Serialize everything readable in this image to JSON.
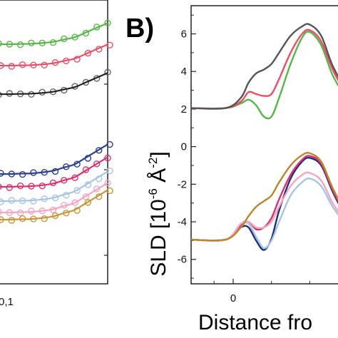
{
  "panel_label": "B)",
  "left_panel_tick_label": "0,1",
  "chart_data": [
    {
      "type": "scatter",
      "panel": "A",
      "note_visible": "partially cropped reflectivity panel; only one x tick label visible",
      "x_tick_labels": [
        "0,1"
      ],
      "series": [
        {
          "color": "#58b548",
          "x": [
            0,
            1,
            2,
            3,
            4,
            5,
            6,
            7,
            8,
            9,
            10
          ],
          "y": [
            0,
            0,
            0.1,
            0.2,
            0.5,
            1,
            2,
            3,
            5,
            7,
            9
          ]
        },
        {
          "color": "#e8506a",
          "x": [
            0,
            1,
            2,
            3,
            4,
            5,
            6,
            7,
            8,
            9,
            10
          ],
          "y": [
            0,
            0,
            0.1,
            0.2,
            0.5,
            1,
            2,
            3,
            5,
            7,
            9
          ]
        },
        {
          "color": "#666666",
          "x": [
            0,
            1,
            2,
            3,
            4,
            5,
            6,
            7,
            8,
            9,
            10
          ],
          "y": [
            0,
            0,
            0.1,
            0.2,
            0.5,
            1,
            2,
            3,
            5,
            7,
            9
          ]
        },
        {
          "color": "#2b3f8f",
          "x": [
            0,
            1,
            2,
            3,
            4,
            5,
            6,
            7,
            8,
            9,
            10
          ],
          "y": [
            0,
            0,
            0.1,
            0.2,
            0.5,
            1,
            2,
            3,
            5,
            7,
            9
          ]
        },
        {
          "color": "#d6336f",
          "x": [
            0,
            1,
            2,
            3,
            4,
            5,
            6,
            7,
            8,
            9,
            10
          ],
          "y": [
            0,
            0,
            0.1,
            0.2,
            0.5,
            1,
            2,
            3,
            5,
            7,
            9
          ]
        },
        {
          "color": "#a8c4e4",
          "x": [
            0,
            1,
            2,
            3,
            4,
            5,
            6,
            7,
            8,
            9,
            10
          ],
          "y": [
            0,
            0,
            0.1,
            0.2,
            0.5,
            1,
            2,
            3,
            5,
            7,
            9
          ]
        },
        {
          "color": "#f3a6c0",
          "x": [
            0,
            1,
            2,
            3,
            4,
            5,
            6,
            7,
            8,
            9,
            10
          ],
          "y": [
            0,
            0,
            0.1,
            0.2,
            0.5,
            1,
            2,
            3,
            5,
            7,
            9
          ]
        },
        {
          "color": "#c8963a",
          "x": [
            0,
            1,
            2,
            3,
            4,
            5,
            6,
            7,
            8,
            9,
            10
          ],
          "y": [
            0,
            0,
            0.1,
            0.2,
            0.5,
            1,
            2,
            3,
            5,
            7,
            9
          ]
        }
      ]
    },
    {
      "type": "line",
      "panel": "B",
      "ylabel_parts": [
        "SLD [10",
        "-6",
        " Å",
        "-2",
        "]"
      ],
      "xlabel": "Distance fro",
      "ylim": [
        -7.3,
        7.5
      ],
      "xlim": [
        -1.1,
        3.0
      ],
      "y_ticks": [
        6,
        4,
        2,
        0,
        -2,
        -4,
        -6
      ],
      "y_tick_labels": [
        "6",
        "4",
        "2",
        "0",
        "-2",
        "-4",
        "-6"
      ],
      "x_ticks": [
        0
      ],
      "x_tick_labels": [
        "0"
      ],
      "series": [
        {
          "color": "#58b548",
          "x": [
            -1.1,
            -0.2,
            0.2,
            0.4,
            0.6,
            0.8,
            1.0,
            1.2,
            1.5,
            1.8,
            2.0,
            2.3,
            2.6,
            3.0
          ],
          "y": [
            2.05,
            2.05,
            2.3,
            2.5,
            2.2,
            1.6,
            1.6,
            2.6,
            4.4,
            5.8,
            6.1,
            5.4,
            3.8,
            2.4
          ]
        },
        {
          "color": "#e8506a",
          "x": [
            -1.1,
            -0.2,
            0.2,
            0.4,
            0.6,
            0.8,
            1.0,
            1.2,
            1.5,
            1.8,
            2.0,
            2.3,
            2.6,
            3.0
          ],
          "y": [
            2.05,
            2.05,
            2.4,
            2.9,
            2.8,
            2.7,
            2.8,
            3.6,
            5.0,
            6.0,
            6.2,
            5.6,
            4.1,
            2.6
          ]
        },
        {
          "color": "#555555",
          "x": [
            -1.1,
            -0.2,
            0.2,
            0.4,
            0.6,
            0.8,
            1.0,
            1.2,
            1.5,
            1.8,
            2.0,
            2.3,
            2.6,
            3.0
          ],
          "y": [
            2.05,
            2.05,
            2.6,
            3.4,
            3.9,
            4.1,
            4.4,
            5.0,
            5.9,
            6.4,
            6.5,
            5.9,
            4.3,
            2.8
          ]
        },
        {
          "color": "#1f2f7a",
          "x": [
            -1.1,
            -0.2,
            0.2,
            0.4,
            0.6,
            0.8,
            1.0,
            1.2,
            1.5,
            1.8,
            2.0,
            2.3,
            2.6,
            3.0
          ],
          "y": [
            -4.95,
            -4.95,
            -4.3,
            -4.3,
            -5.0,
            -5.5,
            -4.9,
            -3.4,
            -1.7,
            -0.8,
            -0.6,
            -1.0,
            -2.4,
            -4.0
          ]
        },
        {
          "color": "#d6336f",
          "x": [
            -1.1,
            -0.2,
            0.2,
            0.4,
            0.6,
            0.8,
            1.0,
            1.2,
            1.5,
            1.8,
            2.0,
            2.3,
            2.6,
            3.0
          ],
          "y": [
            -4.95,
            -4.95,
            -4.2,
            -4.0,
            -4.4,
            -4.3,
            -3.8,
            -2.8,
            -1.5,
            -0.7,
            -0.5,
            -0.9,
            -2.3,
            -3.9
          ]
        },
        {
          "color": "#a8c4e4",
          "x": [
            -1.1,
            -0.2,
            0.2,
            0.4,
            0.6,
            0.8,
            1.0,
            1.2,
            1.5,
            1.8,
            2.0,
            2.3,
            2.6,
            3.0
          ],
          "y": [
            -4.95,
            -4.95,
            -4.1,
            -4.1,
            -4.8,
            -5.4,
            -5.0,
            -4.0,
            -2.6,
            -1.9,
            -1.7,
            -2.1,
            -3.2,
            -4.3
          ]
        },
        {
          "color": "#f3a6c0",
          "x": [
            -1.1,
            -0.2,
            0.2,
            0.4,
            0.6,
            0.8,
            1.0,
            1.2,
            1.5,
            1.8,
            2.0,
            2.3,
            2.6,
            3.0
          ],
          "y": [
            -4.95,
            -4.95,
            -4.1,
            -4.0,
            -4.3,
            -4.3,
            -4.0,
            -3.2,
            -2.1,
            -1.5,
            -1.4,
            -1.8,
            -3.0,
            -4.2
          ]
        },
        {
          "color": "#b8862e",
          "x": [
            -1.1,
            -0.2,
            0.2,
            0.4,
            0.6,
            0.8,
            1.0,
            1.2,
            1.5,
            1.8,
            2.0,
            2.3,
            2.6,
            3.0
          ],
          "y": [
            -4.95,
            -4.95,
            -4.3,
            -3.7,
            -3.2,
            -2.9,
            -2.6,
            -1.9,
            -1.0,
            -0.45,
            -0.35,
            -0.8,
            -2.2,
            -3.8
          ]
        }
      ]
    }
  ]
}
